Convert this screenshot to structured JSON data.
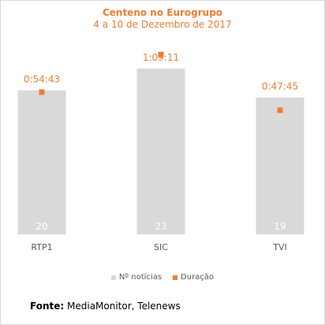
{
  "chart_data": {
    "type": "bar",
    "title": "Centeno no Eurogrupo",
    "subtitle": "4 a 10 de Dezembro de 2017",
    "categories": [
      "RTP1",
      "SIC",
      "TVI"
    ],
    "series": [
      {
        "name": "Nº notícias",
        "type": "bar",
        "values": [
          20,
          23,
          19
        ],
        "labels": [
          "20",
          "23",
          "19"
        ]
      },
      {
        "name": "Duração",
        "type": "scatter",
        "values_seconds": [
          3283,
          4151,
          2865
        ],
        "labels": [
          "0:54:43",
          "1:09:11",
          "0:47:45"
        ]
      }
    ],
    "ylim_bars": [
      0,
      23
    ],
    "ylim_duration_seconds": [
      0,
      5410
    ],
    "legend_position": "bottom",
    "grid": false
  },
  "source": {
    "label": "Fonte:",
    "text": "MediaMonitor, Telenews"
  },
  "colors": {
    "bar": "#d9d9d9",
    "marker": "#ed7d31",
    "title": "#ed7d31",
    "bar_label": "#ffffff",
    "axis_text": "#595959"
  }
}
